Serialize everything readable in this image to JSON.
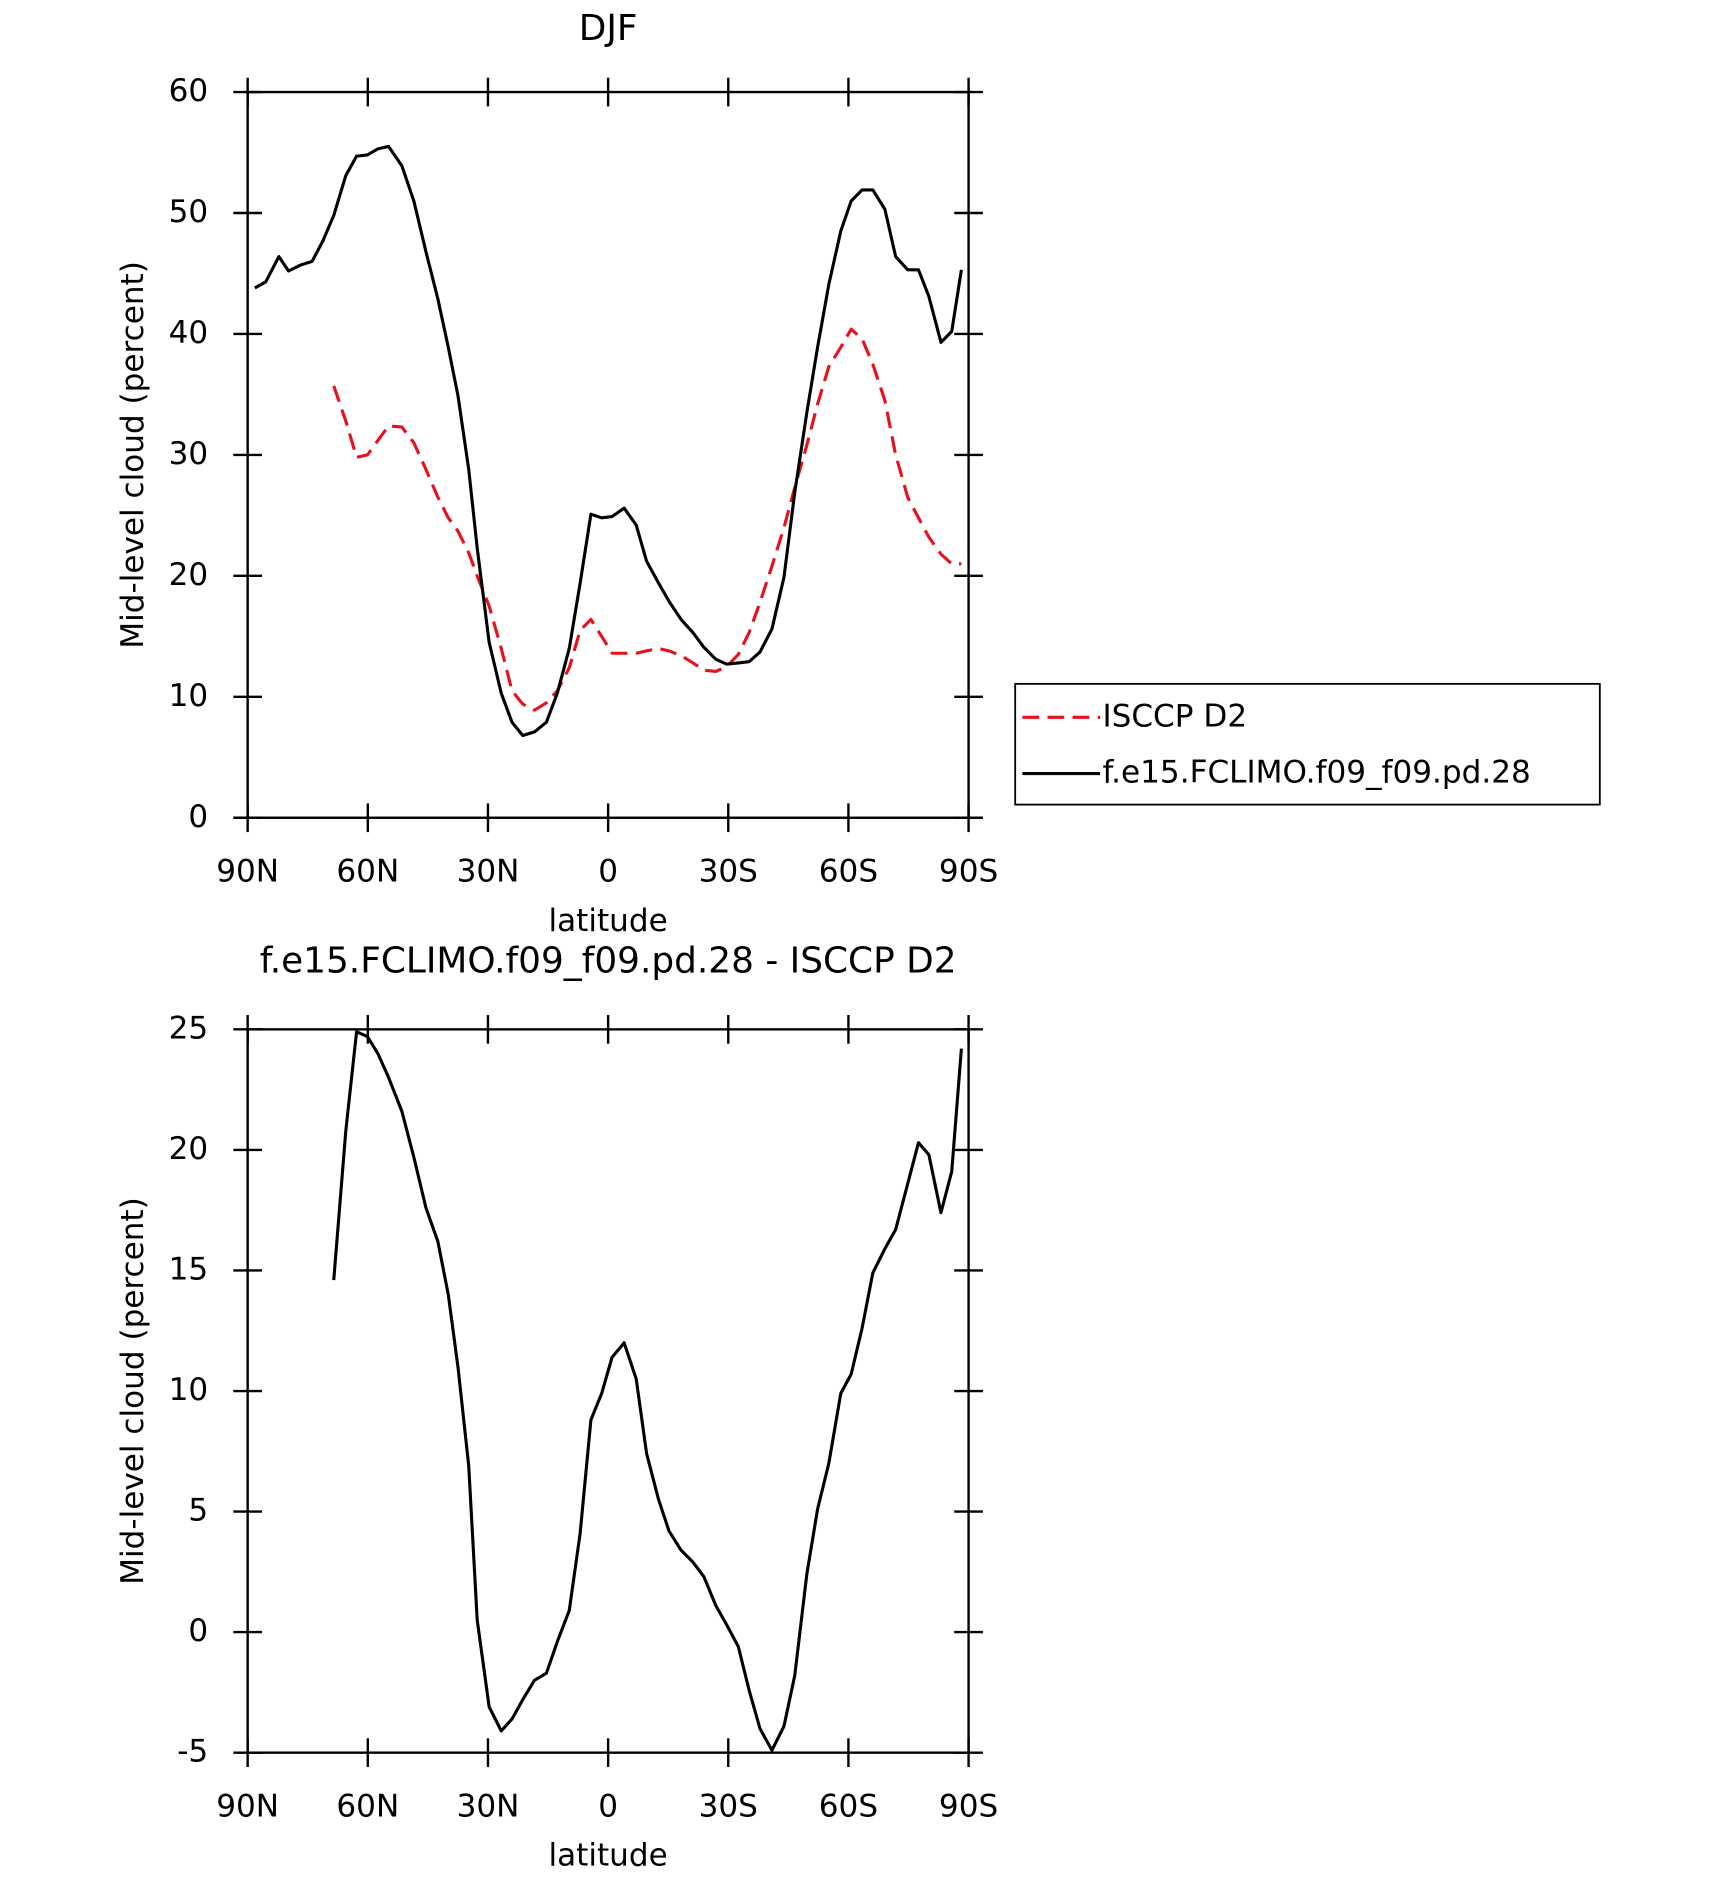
{
  "chart_data": [
    {
      "type": "line",
      "title": "DJF",
      "xlabel": "latitude",
      "ylabel": "Mid-level cloud (percent)",
      "x": [
        88.2,
        85.5,
        82.2,
        79.8,
        76.8,
        73.9,
        71.2,
        68.5,
        65.5,
        62.8,
        60.1,
        57.5,
        54.8,
        51.5,
        48.5,
        45.5,
        42.5,
        39.9,
        37.5,
        34.8,
        32.7,
        29.7,
        26.7,
        24.0,
        21.3,
        18.4,
        15.4,
        12.7,
        9.7,
        7.0,
        4.3,
        1.6,
        -1.0,
        -4.0,
        -7.0,
        -9.6,
        -12.6,
        -15.2,
        -18.2,
        -21.2,
        -23.9,
        -26.9,
        -29.6,
        -32.5,
        -35.2,
        -37.9,
        -40.9,
        -43.9,
        -46.6,
        -49.6,
        -52.3,
        -55.1,
        -58.1,
        -60.7,
        -63.4,
        -66.1,
        -69.1,
        -71.8,
        -74.8,
        -77.5,
        -80.1,
        -83.1,
        -85.8,
        -88.2
      ],
      "series": [
        {
          "name": "ISCCP D2",
          "color": "#e8101a",
          "style": "dashed",
          "values": [
            null,
            null,
            null,
            null,
            null,
            null,
            null,
            35.7,
            32.8,
            29.8,
            30.0,
            31.2,
            32.4,
            32.3,
            31.0,
            28.8,
            26.5,
            24.8,
            23.7,
            21.9,
            20.0,
            17.5,
            14.0,
            10.5,
            9.4,
            8.9,
            9.5,
            10.5,
            12.4,
            15.5,
            16.4,
            15.0,
            13.6,
            13.6,
            13.6,
            13.8,
            14.0,
            13.8,
            13.4,
            12.8,
            12.2,
            12.1,
            12.5,
            13.5,
            15.3,
            17.8,
            20.8,
            24.0,
            27.3,
            30.8,
            34.2,
            37.3,
            38.9,
            40.4,
            39.6,
            37.5,
            34.5,
            30.0,
            26.5,
            24.8,
            23.2,
            21.8,
            21.0,
            21.0
          ]
        },
        {
          "name": "f.e15.FCLIMO.f09_f09.pd.28",
          "color": "#000000",
          "style": "solid",
          "values": [
            43.8,
            44.3,
            46.4,
            45.2,
            45.7,
            46.0,
            47.7,
            49.8,
            53.1,
            54.7,
            54.8,
            55.3,
            55.5,
            53.9,
            51.0,
            46.8,
            42.9,
            38.9,
            34.9,
            28.8,
            22.3,
            14.5,
            10.3,
            7.9,
            6.8,
            7.1,
            7.9,
            10.3,
            14.0,
            19.4,
            25.1,
            24.8,
            24.9,
            25.6,
            24.2,
            21.2,
            19.4,
            17.9,
            16.4,
            15.3,
            14.1,
            13.1,
            12.7,
            12.8,
            12.9,
            13.7,
            15.6,
            19.9,
            26.9,
            33.5,
            38.9,
            44.1,
            48.5,
            51.0,
            51.9,
            51.9,
            50.3,
            46.4,
            45.3,
            45.3,
            43.1,
            39.3,
            40.2,
            45.3
          ]
        }
      ],
      "xlim": [
        90,
        -90
      ],
      "xticks": [
        {
          "value": 90,
          "label": "90N"
        },
        {
          "value": 60,
          "label": "60N"
        },
        {
          "value": 30,
          "label": "30N"
        },
        0,
        {
          "value": -30,
          "label": "30S"
        },
        {
          "value": -60,
          "label": "60S"
        },
        {
          "value": -90,
          "label": "90S"
        }
      ],
      "ylim": [
        0,
        60
      ],
      "yticks": [
        0,
        10,
        20,
        30,
        40,
        50,
        60
      ],
      "legend": "right"
    },
    {
      "type": "line",
      "title": "f.e15.FCLIMO.f09_f09.pd.28 - ISCCP D2",
      "xlabel": "latitude",
      "ylabel": "Mid-level cloud (percent)",
      "x": [
        88.2,
        85.5,
        82.2,
        79.8,
        76.8,
        73.9,
        71.2,
        68.5,
        65.5,
        62.8,
        60.1,
        57.5,
        54.8,
        51.5,
        48.5,
        45.5,
        42.5,
        39.9,
        37.5,
        34.8,
        32.7,
        29.7,
        26.7,
        24.0,
        21.3,
        18.4,
        15.4,
        12.7,
        9.7,
        7.0,
        4.3,
        1.6,
        -1.0,
        -4.0,
        -7.0,
        -9.6,
        -12.6,
        -15.2,
        -18.2,
        -21.2,
        -23.9,
        -26.9,
        -29.6,
        -32.5,
        -35.2,
        -37.9,
        -40.9,
        -43.9,
        -46.6,
        -49.6,
        -52.3,
        -55.1,
        -58.1,
        -60.7,
        -63.4,
        -66.1,
        -69.1,
        -71.8,
        -74.8,
        -77.5,
        -80.1,
        -83.1,
        -85.8,
        -88.2
      ],
      "values": [
        null,
        null,
        null,
        null,
        null,
        null,
        null,
        14.6,
        20.8,
        24.9,
        24.7,
        24.0,
        23.0,
        21.6,
        19.7,
        17.6,
        16.2,
        14.0,
        11.0,
        6.9,
        0.5,
        -3.1,
        -4.1,
        -3.6,
        -2.8,
        -2.0,
        -1.7,
        -0.4,
        0.9,
        4.1,
        8.8,
        9.9,
        11.4,
        12.0,
        10.5,
        7.4,
        5.5,
        4.2,
        3.4,
        2.9,
        2.3,
        1.1,
        0.3,
        -0.6,
        -2.4,
        -4.0,
        -4.9,
        -3.9,
        -1.8,
        2.4,
        5.1,
        7.0,
        9.9,
        10.7,
        12.6,
        14.9,
        15.9,
        16.7,
        18.6,
        20.3,
        19.8,
        17.4,
        19.1,
        24.2
      ],
      "color": "#000000",
      "xlim": [
        90,
        -90
      ],
      "xticks": [
        {
          "value": 90,
          "label": "90N"
        },
        {
          "value": 60,
          "label": "60N"
        },
        {
          "value": 30,
          "label": "30N"
        },
        0,
        {
          "value": -30,
          "label": "30S"
        },
        {
          "value": -60,
          "label": "60S"
        },
        {
          "value": -90,
          "label": "90S"
        }
      ],
      "ylim": [
        -5,
        25
      ],
      "yticks": [
        -5,
        0,
        5,
        10,
        15,
        20,
        25
      ]
    }
  ]
}
